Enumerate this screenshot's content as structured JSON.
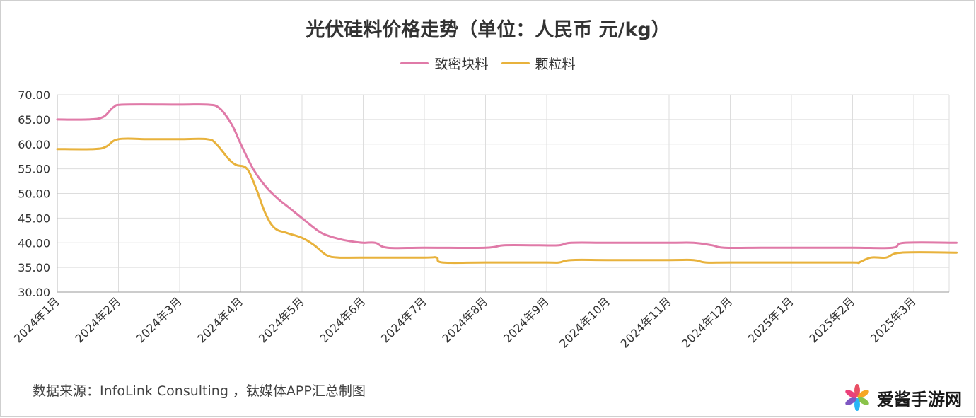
{
  "chart_data": {
    "type": "line",
    "title": "光伏硅料价格走势（单位：人民币 元/kg）",
    "ylim": [
      30,
      70
    ],
    "yticks": [
      "30.00",
      "35.00",
      "40.00",
      "45.00",
      "50.00",
      "55.00",
      "60.00",
      "65.00",
      "70.00"
    ],
    "categories": [
      "2024年1月",
      "2024年2月",
      "2024年3月",
      "2024年4月",
      "2024年5月",
      "2024年6月",
      "2024年7月",
      "2024年8月",
      "2024年9月",
      "2024年10月",
      "2024年11月",
      "2024年12月",
      "2025年1月",
      "2025年2月",
      "2025年3月"
    ],
    "x_end": 14.7,
    "grid": true,
    "legend_position": "top-center",
    "series": [
      {
        "name": "致密块料",
        "color": "#e07aa8",
        "points": [
          [
            0,
            65
          ],
          [
            0.5,
            65
          ],
          [
            0.75,
            65.5
          ],
          [
            0.92,
            67.5
          ],
          [
            1.1,
            68
          ],
          [
            2.0,
            68
          ],
          [
            2.45,
            68
          ],
          [
            2.65,
            67.3
          ],
          [
            2.85,
            64
          ],
          [
            3.0,
            60
          ],
          [
            3.2,
            55
          ],
          [
            3.4,
            51.5
          ],
          [
            3.6,
            49
          ],
          [
            3.8,
            47
          ],
          [
            4.0,
            45
          ],
          [
            4.2,
            43
          ],
          [
            4.35,
            41.8
          ],
          [
            4.6,
            40.8
          ],
          [
            4.8,
            40.3
          ],
          [
            5.0,
            40
          ],
          [
            5.2,
            40
          ],
          [
            5.4,
            39
          ],
          [
            6.0,
            39
          ],
          [
            7.0,
            39
          ],
          [
            7.3,
            39.5
          ],
          [
            7.8,
            39.5
          ],
          [
            8.2,
            39.5
          ],
          [
            8.4,
            40
          ],
          [
            9.0,
            40
          ],
          [
            10.0,
            40
          ],
          [
            10.4,
            40
          ],
          [
            10.7,
            39.5
          ],
          [
            10.9,
            39
          ],
          [
            11.5,
            39
          ],
          [
            12.0,
            39
          ],
          [
            13.0,
            39
          ],
          [
            13.65,
            39
          ],
          [
            13.85,
            40
          ],
          [
            14.7,
            40
          ]
        ]
      },
      {
        "name": "颗粒料",
        "color": "#e8b23c",
        "points": [
          [
            0,
            59
          ],
          [
            0.6,
            59
          ],
          [
            0.8,
            59.5
          ],
          [
            1.0,
            61
          ],
          [
            1.5,
            61
          ],
          [
            2.0,
            61
          ],
          [
            2.45,
            61
          ],
          [
            2.6,
            60
          ],
          [
            2.8,
            57
          ],
          [
            2.92,
            55.8
          ],
          [
            3.1,
            55
          ],
          [
            3.25,
            51
          ],
          [
            3.4,
            46
          ],
          [
            3.55,
            43
          ],
          [
            3.75,
            42
          ],
          [
            4.0,
            41
          ],
          [
            4.2,
            39.5
          ],
          [
            4.4,
            37.5
          ],
          [
            4.6,
            37
          ],
          [
            5.0,
            37
          ],
          [
            6.0,
            37
          ],
          [
            6.2,
            37
          ],
          [
            6.3,
            36
          ],
          [
            7.0,
            36
          ],
          [
            8.0,
            36
          ],
          [
            8.2,
            36
          ],
          [
            8.4,
            36.5
          ],
          [
            9.0,
            36.5
          ],
          [
            10.0,
            36.5
          ],
          [
            10.4,
            36.5
          ],
          [
            10.6,
            36
          ],
          [
            11.0,
            36
          ],
          [
            12.0,
            36
          ],
          [
            13.0,
            36
          ],
          [
            13.1,
            36
          ],
          [
            13.3,
            37
          ],
          [
            13.55,
            37
          ],
          [
            13.8,
            38
          ],
          [
            14.7,
            38
          ]
        ]
      }
    ]
  },
  "source": "数据来源：InfoLink Consulting ，钛媒体APP汇总制图",
  "watermark": {
    "text": "爱酱手游网",
    "icon": "pinwheel-logo-icon"
  }
}
